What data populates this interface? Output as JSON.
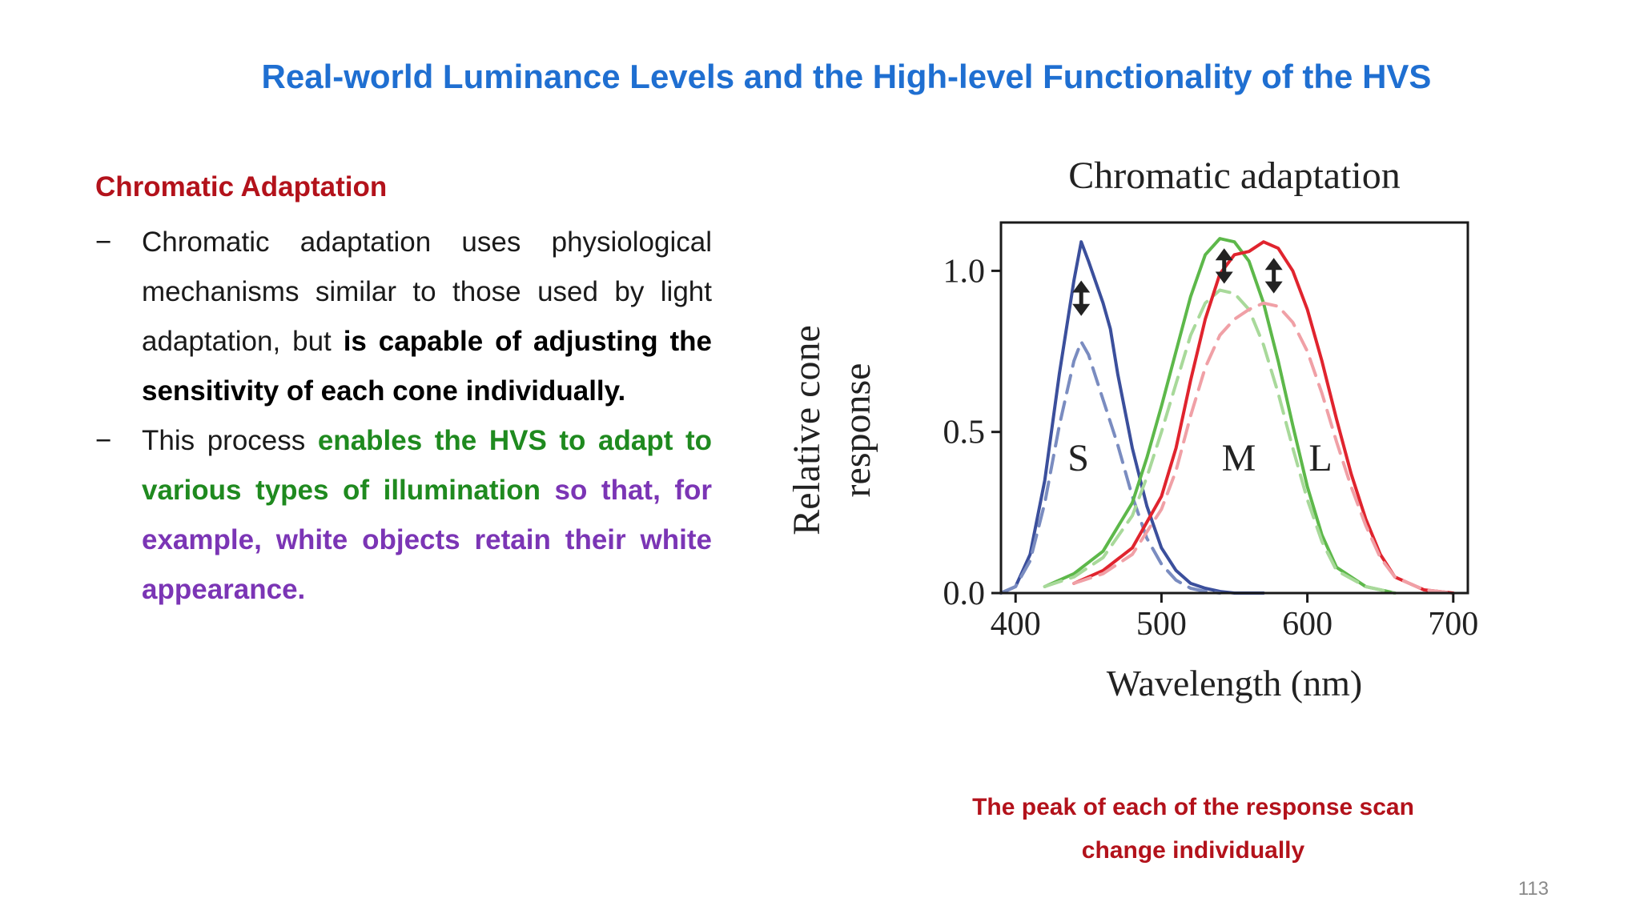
{
  "slide": {
    "title": "Real-world Luminance Levels and the High-level Functionality of the HVS",
    "title_color": "#1f6fd1",
    "page_number": "113"
  },
  "left": {
    "heading": "Chromatic Adaptation",
    "heading_color": "#b3121b",
    "bullet_marker": "−",
    "bullets": [
      {
        "segments": [
          {
            "text": "Chromatic adaptation uses physiological mechanisms similar to those used by light adaptation, but ",
            "bold": false,
            "color": "#1a1a1a"
          },
          {
            "text": "is capable of adjusting the sensitivity of each cone individually.",
            "bold": true,
            "color": "#000000"
          }
        ]
      },
      {
        "segments": [
          {
            "text": "This process ",
            "bold": false,
            "color": "#1a1a1a"
          },
          {
            "text": "enables the HVS to adapt to various types of illumination",
            "bold": true,
            "color": "#1f8a1f"
          },
          {
            "text": " so that, for example, white objects retain their white appearance.",
            "bold": true,
            "color": "#7b35b5"
          }
        ]
      }
    ]
  },
  "caption": {
    "line1": "The peak of each of the response scan",
    "line2": "change individually",
    "color": "#b3121b"
  },
  "chart_data": {
    "type": "line",
    "title": "Chromatic adaptation",
    "xlabel": "Wavelength (nm)",
    "ylabel_line1": "Relative cone",
    "ylabel_line2": "response",
    "xlim": [
      390,
      710
    ],
    "ylim": [
      0,
      1.15
    ],
    "x_ticks": [
      "400",
      "500",
      "600",
      "700"
    ],
    "x_tick_values": [
      400,
      500,
      600,
      700
    ],
    "y_ticks": [
      "0.0",
      "0.5",
      "1.0"
    ],
    "y_tick_values": [
      0,
      0.5,
      1.0
    ],
    "grid": false,
    "series": [
      {
        "name": "S",
        "cone": "S",
        "style": "solid",
        "color": "#3b4f9c",
        "x": [
          390,
          400,
          410,
          420,
          430,
          440,
          445,
          450,
          460,
          465,
          470,
          480,
          490,
          500,
          510,
          520,
          530,
          540,
          550,
          570
        ],
        "y": [
          0.0,
          0.02,
          0.12,
          0.35,
          0.68,
          0.97,
          1.09,
          1.03,
          0.9,
          0.82,
          0.68,
          0.45,
          0.27,
          0.14,
          0.07,
          0.03,
          0.015,
          0.005,
          0.0,
          0.0
        ]
      },
      {
        "name": "",
        "cone": "S",
        "style": "dashed",
        "color": "#7a8cc0",
        "x": [
          390,
          400,
          410,
          420,
          430,
          440,
          445,
          450,
          460,
          470,
          480,
          490,
          500,
          510,
          520,
          530,
          540
        ],
        "y": [
          0.0,
          0.02,
          0.1,
          0.28,
          0.52,
          0.72,
          0.78,
          0.74,
          0.6,
          0.46,
          0.3,
          0.17,
          0.09,
          0.04,
          0.015,
          0.005,
          0.0
        ]
      },
      {
        "name": "M",
        "cone": "M",
        "style": "solid",
        "color": "#5db84a",
        "x": [
          420,
          440,
          460,
          480,
          490,
          500,
          510,
          520,
          530,
          540,
          550,
          560,
          570,
          580,
          590,
          600,
          610,
          620,
          640,
          660
        ],
        "y": [
          0.02,
          0.06,
          0.13,
          0.28,
          0.42,
          0.58,
          0.75,
          0.92,
          1.05,
          1.1,
          1.09,
          1.03,
          0.9,
          0.72,
          0.52,
          0.33,
          0.18,
          0.08,
          0.02,
          0.0
        ]
      },
      {
        "name": "",
        "cone": "M",
        "style": "dashed",
        "color": "#a8d99a",
        "x": [
          420,
          440,
          460,
          480,
          490,
          500,
          510,
          520,
          530,
          540,
          550,
          560,
          570,
          580,
          590,
          600,
          610,
          620,
          640,
          660
        ],
        "y": [
          0.02,
          0.05,
          0.11,
          0.24,
          0.36,
          0.5,
          0.65,
          0.8,
          0.9,
          0.94,
          0.93,
          0.88,
          0.77,
          0.62,
          0.45,
          0.29,
          0.16,
          0.07,
          0.02,
          0.0
        ]
      },
      {
        "name": "L",
        "cone": "L",
        "style": "solid",
        "color": "#e0242e",
        "x": [
          440,
          460,
          480,
          500,
          510,
          520,
          530,
          540,
          550,
          560,
          570,
          580,
          590,
          600,
          610,
          620,
          630,
          640,
          650,
          660,
          680,
          700
        ],
        "y": [
          0.03,
          0.07,
          0.14,
          0.3,
          0.45,
          0.66,
          0.85,
          0.99,
          1.05,
          1.06,
          1.09,
          1.07,
          1.0,
          0.88,
          0.72,
          0.54,
          0.37,
          0.23,
          0.12,
          0.05,
          0.01,
          0.0
        ]
      },
      {
        "name": "",
        "cone": "L",
        "style": "dashed",
        "color": "#f0a0a6",
        "x": [
          440,
          460,
          480,
          500,
          510,
          520,
          530,
          540,
          550,
          560,
          570,
          580,
          590,
          600,
          610,
          620,
          630,
          640,
          650,
          660,
          680,
          700
        ],
        "y": [
          0.03,
          0.06,
          0.12,
          0.26,
          0.38,
          0.55,
          0.7,
          0.8,
          0.85,
          0.88,
          0.9,
          0.89,
          0.84,
          0.75,
          0.62,
          0.47,
          0.33,
          0.21,
          0.11,
          0.05,
          0.01,
          0.0
        ]
      }
    ],
    "annotations": [
      {
        "text": "S",
        "x": 443,
        "y": 0.38
      },
      {
        "text": "M",
        "x": 553,
        "y": 0.38
      },
      {
        "text": "L",
        "x": 609,
        "y": 0.38
      }
    ],
    "arrows": [
      {
        "x": 445,
        "y_top": 0.97,
        "y_bottom": 0.86,
        "color": "#222222"
      },
      {
        "x": 543,
        "y_top": 1.07,
        "y_bottom": 0.96,
        "color": "#222222"
      },
      {
        "x": 577,
        "y_top": 1.04,
        "y_bottom": 0.93,
        "color": "#222222"
      }
    ]
  }
}
